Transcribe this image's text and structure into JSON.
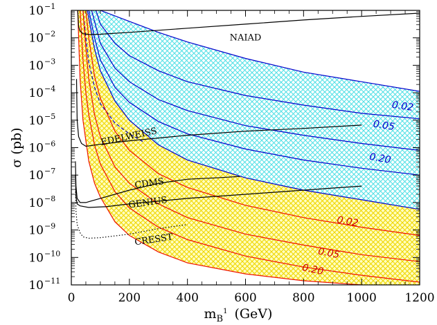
{
  "chart_data": {
    "type": "line",
    "xlabel": {
      "main": "m",
      "sub": "B",
      "sup": "1",
      "unit": "(GeV)"
    },
    "ylabel": "σ (pb)",
    "xlim": [
      0,
      1200
    ],
    "ylim_log10": [
      -11,
      -1
    ],
    "y_scale": "log",
    "x_ticks": [
      0,
      200,
      400,
      600,
      800,
      1000,
      1200
    ],
    "x_tick_labels": [
      "0",
      "200",
      "400",
      "600",
      "800",
      "1000",
      "1200"
    ],
    "y_ticks_log10": [
      -11,
      -10,
      -9,
      -8,
      -7,
      -6,
      -5,
      -4,
      -3,
      -2,
      -1
    ],
    "y_tick_labels": [
      {
        "base": "10",
        "exp": "−11"
      },
      {
        "base": "10",
        "exp": "−10"
      },
      {
        "base": "10",
        "exp": "−9"
      },
      {
        "base": "10",
        "exp": "−8"
      },
      {
        "base": "10",
        "exp": "−7"
      },
      {
        "base": "10",
        "exp": "−6"
      },
      {
        "base": "10",
        "exp": "−5"
      },
      {
        "base": "10",
        "exp": "−4"
      },
      {
        "base": "10",
        "exp": "−3"
      },
      {
        "base": "10",
        "exp": "−2"
      },
      {
        "base": "10",
        "exp": "−1"
      }
    ],
    "colors": {
      "blue_band_fill": "#6ee8ec",
      "yellow_band_fill": "#f8f060",
      "blue_line": "#0000cc",
      "red_line": "#ee1100",
      "black_line": "#000000",
      "blue_label": "#0000cc",
      "red_label": "#cc0000"
    },
    "bands": [
      {
        "fill": "cyan-hatch",
        "upper": [
          [
            100,
            -1
          ],
          [
            200,
            -1.4
          ],
          [
            300,
            -1.8
          ],
          [
            400,
            -2.15
          ],
          [
            600,
            -2.75
          ],
          [
            800,
            -3.25
          ],
          [
            1000,
            -3.6
          ],
          [
            1200,
            -3.95
          ]
        ],
        "lower": [
          [
            55,
            -1
          ],
          [
            80,
            -2.4
          ],
          [
            100,
            -3.2
          ],
          [
            150,
            -4.3
          ],
          [
            200,
            -5.0
          ],
          [
            300,
            -5.9
          ],
          [
            400,
            -6.45
          ],
          [
            600,
            -7.1
          ],
          [
            800,
            -7.55
          ],
          [
            1000,
            -7.9
          ],
          [
            1200,
            -8.25
          ]
        ]
      },
      {
        "fill": "yellow-hatch",
        "upper": [
          [
            55,
            -1
          ],
          [
            80,
            -2.4
          ],
          [
            100,
            -3.2
          ],
          [
            150,
            -4.3
          ],
          [
            200,
            -5.0
          ],
          [
            300,
            -5.9
          ],
          [
            400,
            -6.45
          ],
          [
            600,
            -7.1
          ],
          [
            800,
            -7.55
          ],
          [
            1000,
            -7.9
          ],
          [
            1200,
            -8.25
          ]
        ],
        "lower": [
          [
            22,
            -1
          ],
          [
            30,
            -3.5
          ],
          [
            40,
            -5.0
          ],
          [
            60,
            -6.5
          ],
          [
            80,
            -7.3
          ],
          [
            100,
            -7.8
          ],
          [
            150,
            -8.7
          ],
          [
            200,
            -9.2
          ],
          [
            300,
            -9.8
          ],
          [
            400,
            -10.2
          ],
          [
            600,
            -10.6
          ],
          [
            800,
            -10.85
          ],
          [
            1000,
            -11.0
          ],
          [
            1200,
            -11.05
          ]
        ]
      }
    ],
    "series": [
      {
        "group": "blue",
        "points": [
          [
            100,
            -1
          ],
          [
            200,
            -1.4
          ],
          [
            300,
            -1.8
          ],
          [
            400,
            -2.15
          ],
          [
            600,
            -2.75
          ],
          [
            800,
            -3.25
          ],
          [
            1000,
            -3.6
          ],
          [
            1200,
            -3.95
          ]
        ]
      },
      {
        "group": "blue",
        "points": [
          [
            85,
            -1
          ],
          [
            100,
            -1.5
          ],
          [
            150,
            -2.2
          ],
          [
            200,
            -2.65
          ],
          [
            300,
            -3.2
          ],
          [
            400,
            -3.6
          ],
          [
            600,
            -4.1
          ],
          [
            800,
            -4.45
          ],
          [
            1000,
            -4.75
          ],
          [
            1200,
            -4.95
          ]
        ]
      },
      {
        "group": "blue",
        "points": [
          [
            70,
            -1
          ],
          [
            100,
            -2.2
          ],
          [
            150,
            -3.1
          ],
          [
            200,
            -3.6
          ],
          [
            300,
            -4.25
          ],
          [
            400,
            -4.65
          ],
          [
            600,
            -5.2
          ],
          [
            800,
            -5.55
          ],
          [
            1000,
            -5.85
          ],
          [
            1200,
            -6.1
          ]
        ]
      },
      {
        "group": "blue",
        "points": [
          [
            60,
            -1
          ],
          [
            80,
            -2.0
          ],
          [
            100,
            -2.8
          ],
          [
            150,
            -3.8
          ],
          [
            200,
            -4.35
          ],
          [
            300,
            -5.05
          ],
          [
            400,
            -5.5
          ],
          [
            600,
            -6.05
          ],
          [
            800,
            -6.45
          ],
          [
            1000,
            -6.75
          ],
          [
            1200,
            -7.0
          ]
        ]
      },
      {
        "group": "blue",
        "points": [
          [
            55,
            -1
          ],
          [
            80,
            -2.4
          ],
          [
            100,
            -3.2
          ],
          [
            150,
            -4.3
          ],
          [
            200,
            -5.0
          ],
          [
            300,
            -5.9
          ],
          [
            400,
            -6.45
          ],
          [
            600,
            -7.1
          ],
          [
            800,
            -7.55
          ],
          [
            1000,
            -7.9
          ],
          [
            1200,
            -8.25
          ]
        ]
      },
      {
        "group": "blue-dashed",
        "points": [
          [
            40,
            -1
          ],
          [
            50,
            -2.0
          ],
          [
            60,
            -2.9
          ],
          [
            80,
            -3.8
          ],
          [
            100,
            -4.4
          ],
          [
            150,
            -5.1
          ],
          [
            200,
            -5.5
          ],
          [
            250,
            -5.8
          ]
        ]
      },
      {
        "group": "red",
        "points": [
          [
            50,
            -1
          ],
          [
            60,
            -2.0
          ],
          [
            80,
            -3.4
          ],
          [
            100,
            -4.2
          ],
          [
            150,
            -5.4
          ],
          [
            200,
            -6.1
          ],
          [
            300,
            -6.95
          ],
          [
            400,
            -7.45
          ],
          [
            600,
            -8.1
          ],
          [
            800,
            -8.55
          ],
          [
            1000,
            -8.9
          ],
          [
            1200,
            -9.2
          ]
        ]
      },
      {
        "group": "red",
        "points": [
          [
            40,
            -1
          ],
          [
            50,
            -2.4
          ],
          [
            60,
            -3.5
          ],
          [
            80,
            -4.8
          ],
          [
            100,
            -5.6
          ],
          [
            150,
            -6.7
          ],
          [
            200,
            -7.3
          ],
          [
            300,
            -8.05
          ],
          [
            400,
            -8.55
          ],
          [
            600,
            -9.15
          ],
          [
            800,
            -9.55
          ],
          [
            1000,
            -9.9
          ],
          [
            1200,
            -10.15
          ]
        ]
      },
      {
        "group": "red",
        "points": [
          [
            30,
            -1
          ],
          [
            40,
            -2.8
          ],
          [
            50,
            -4.0
          ],
          [
            60,
            -4.8
          ],
          [
            80,
            -5.9
          ],
          [
            100,
            -6.6
          ],
          [
            150,
            -7.6
          ],
          [
            200,
            -8.2
          ],
          [
            300,
            -8.9
          ],
          [
            400,
            -9.35
          ],
          [
            600,
            -9.95
          ],
          [
            800,
            -10.35
          ],
          [
            1000,
            -10.65
          ],
          [
            1200,
            -10.9
          ]
        ]
      },
      {
        "group": "red",
        "points": [
          [
            22,
            -1
          ],
          [
            30,
            -3.5
          ],
          [
            40,
            -5.0
          ],
          [
            60,
            -6.5
          ],
          [
            80,
            -7.3
          ],
          [
            100,
            -7.8
          ],
          [
            150,
            -8.7
          ],
          [
            200,
            -9.2
          ],
          [
            300,
            -9.8
          ],
          [
            400,
            -10.2
          ],
          [
            600,
            -10.6
          ],
          [
            800,
            -10.85
          ],
          [
            1000,
            -11.0
          ],
          [
            1200,
            -11.05
          ]
        ]
      },
      {
        "group": "black",
        "points": [
          [
            22,
            -1.0
          ],
          [
            25,
            -1.6
          ],
          [
            30,
            -1.75
          ],
          [
            40,
            -1.85
          ],
          [
            60,
            -1.88
          ],
          [
            100,
            -1.87
          ],
          [
            200,
            -1.8
          ],
          [
            400,
            -1.65
          ],
          [
            600,
            -1.5
          ],
          [
            800,
            -1.35
          ],
          [
            1000,
            -1.22
          ],
          [
            1200,
            -1.1
          ]
        ]
      },
      {
        "group": "black",
        "points": [
          [
            18,
            -3.5
          ],
          [
            20,
            -5.0
          ],
          [
            25,
            -5.6
          ],
          [
            35,
            -5.85
          ],
          [
            50,
            -5.95
          ],
          [
            100,
            -5.88
          ],
          [
            200,
            -5.75
          ],
          [
            400,
            -5.55
          ],
          [
            600,
            -5.4
          ],
          [
            800,
            -5.3
          ],
          [
            1000,
            -5.18
          ]
        ]
      },
      {
        "group": "black",
        "points": [
          [
            14,
            -6.5
          ],
          [
            16,
            -7.4
          ],
          [
            20,
            -7.85
          ],
          [
            30,
            -8.0
          ],
          [
            50,
            -8.0
          ],
          [
            100,
            -7.85
          ],
          [
            200,
            -7.55
          ],
          [
            300,
            -7.3
          ],
          [
            400,
            -7.15
          ],
          [
            500,
            -7.1
          ],
          [
            580,
            -7.05
          ]
        ]
      },
      {
        "group": "black",
        "points": [
          [
            14,
            -7.0
          ],
          [
            16,
            -7.8
          ],
          [
            20,
            -8.05
          ],
          [
            30,
            -8.12
          ],
          [
            60,
            -8.18
          ],
          [
            120,
            -8.15
          ],
          [
            200,
            -8.05
          ],
          [
            400,
            -7.85
          ],
          [
            600,
            -7.7
          ],
          [
            800,
            -7.55
          ],
          [
            1000,
            -7.4
          ]
        ]
      },
      {
        "group": "black-dotted",
        "points": [
          [
            14,
            -7.5
          ],
          [
            16,
            -8.3
          ],
          [
            20,
            -8.8
          ],
          [
            30,
            -9.1
          ],
          [
            40,
            -9.25
          ],
          [
            60,
            -9.3
          ],
          [
            100,
            -9.28
          ],
          [
            200,
            -9.15
          ],
          [
            300,
            -8.95
          ],
          [
            400,
            -8.8
          ]
        ]
      }
    ],
    "experiment_labels": [
      {
        "text": "NAIAD",
        "x": 600,
        "log10y": -2.1,
        "rotate": 0
      },
      {
        "text": "EDELWEISS",
        "x": 200,
        "log10y": -5.7,
        "rotate": -12
      },
      {
        "text": "CDMS",
        "x": 270,
        "log10y": -7.4,
        "rotate": -8
      },
      {
        "text": "GENIUS",
        "x": 265,
        "log10y": -8.1,
        "rotate": -8
      },
      {
        "text": "CRESST",
        "x": 285,
        "log10y": -9.45,
        "rotate": -8
      }
    ],
    "band_labels": [
      {
        "text": "0.02",
        "group": "blue",
        "x": 1140,
        "log10y": -4.6,
        "rotate": 8
      },
      {
        "text": "0.05",
        "group": "blue",
        "x": 1075,
        "log10y": -5.3,
        "rotate": 9
      },
      {
        "text": "0.20",
        "group": "blue",
        "x": 1062,
        "log10y": -6.5,
        "rotate": 10
      },
      {
        "text": "0.02",
        "group": "red",
        "x": 950,
        "log10y": -8.8,
        "rotate": 10
      },
      {
        "text": "0.05",
        "group": "red",
        "x": 885,
        "log10y": -9.95,
        "rotate": 11
      },
      {
        "text": "0.20",
        "group": "red",
        "x": 830,
        "log10y": -10.55,
        "rotate": 12
      }
    ]
  }
}
